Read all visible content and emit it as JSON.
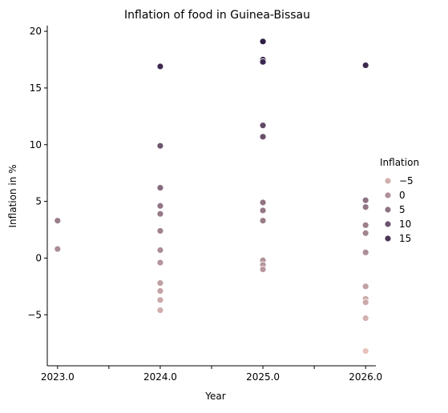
{
  "chart_data": {
    "type": "scatter",
    "title": "Inflation of food in Guinea-Bissau",
    "xlabel": "Year",
    "ylabel": "Inflation in %",
    "xlim": [
      2022.9,
      2026.1
    ],
    "ylim": [
      -9.5,
      20.5
    ],
    "xticks": [
      2023.0,
      2023.5,
      2024.0,
      2024.5,
      2025.0,
      2025.5,
      2026.0
    ],
    "xtick_labels": [
      "2023.0",
      "",
      "2024.0",
      "",
      "2025.0",
      "",
      "2026.0"
    ],
    "yticks": [
      -5,
      0,
      5,
      10,
      15,
      20
    ],
    "ytick_labels": [
      "−5",
      "0",
      "5",
      "10",
      "15",
      "20"
    ],
    "grid": false,
    "hue_range": [
      -8.2,
      19.1
    ],
    "color_low": "#e8c3bc",
    "color_high": "#2f1d46",
    "legend": {
      "title": "Inflation",
      "placement": "right",
      "entries": [
        {
          "label": "−5",
          "value": -5
        },
        {
          "label": "0",
          "value": 0
        },
        {
          "label": "5",
          "value": 5
        },
        {
          "label": "10",
          "value": 10
        },
        {
          "label": "15",
          "value": 15
        }
      ]
    },
    "points": [
      {
        "x": 2023.0,
        "y": 3.3
      },
      {
        "x": 2023.0,
        "y": 0.8
      },
      {
        "x": 2024.0,
        "y": 16.9
      },
      {
        "x": 2024.0,
        "y": 9.9
      },
      {
        "x": 2024.0,
        "y": 6.2
      },
      {
        "x": 2024.0,
        "y": 4.6
      },
      {
        "x": 2024.0,
        "y": 3.9
      },
      {
        "x": 2024.0,
        "y": 2.4
      },
      {
        "x": 2024.0,
        "y": 0.7
      },
      {
        "x": 2024.0,
        "y": -0.4
      },
      {
        "x": 2024.0,
        "y": -2.2
      },
      {
        "x": 2024.0,
        "y": -2.9
      },
      {
        "x": 2024.0,
        "y": -3.7
      },
      {
        "x": 2024.0,
        "y": -4.6
      },
      {
        "x": 2025.0,
        "y": 19.1
      },
      {
        "x": 2025.0,
        "y": 17.5
      },
      {
        "x": 2025.0,
        "y": 17.3
      },
      {
        "x": 2025.0,
        "y": 11.7
      },
      {
        "x": 2025.0,
        "y": 10.7
      },
      {
        "x": 2025.0,
        "y": 4.9
      },
      {
        "x": 2025.0,
        "y": 4.2
      },
      {
        "x": 2025.0,
        "y": 3.3
      },
      {
        "x": 2025.0,
        "y": -0.2
      },
      {
        "x": 2025.0,
        "y": -0.6
      },
      {
        "x": 2025.0,
        "y": -1.0
      },
      {
        "x": 2026.0,
        "y": 17.0
      },
      {
        "x": 2026.0,
        "y": 5.1
      },
      {
        "x": 2026.0,
        "y": 4.5
      },
      {
        "x": 2026.0,
        "y": 2.9
      },
      {
        "x": 2026.0,
        "y": 2.2
      },
      {
        "x": 2026.0,
        "y": 0.5
      },
      {
        "x": 2026.0,
        "y": -2.5
      },
      {
        "x": 2026.0,
        "y": -3.6
      },
      {
        "x": 2026.0,
        "y": -3.9
      },
      {
        "x": 2026.0,
        "y": -5.3
      },
      {
        "x": 2026.0,
        "y": -8.2
      }
    ]
  }
}
